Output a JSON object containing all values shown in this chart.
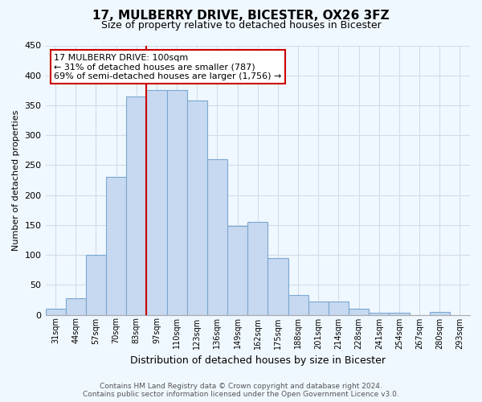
{
  "title": "17, MULBERRY DRIVE, BICESTER, OX26 3FZ",
  "subtitle": "Size of property relative to detached houses in Bicester",
  "xlabel": "Distribution of detached houses by size in Bicester",
  "ylabel": "Number of detached properties",
  "bin_labels": [
    "31sqm",
    "44sqm",
    "57sqm",
    "70sqm",
    "83sqm",
    "97sqm",
    "110sqm",
    "123sqm",
    "136sqm",
    "149sqm",
    "162sqm",
    "175sqm",
    "188sqm",
    "201sqm",
    "214sqm",
    "228sqm",
    "241sqm",
    "254sqm",
    "267sqm",
    "280sqm",
    "293sqm"
  ],
  "bar_heights": [
    10,
    28,
    100,
    230,
    365,
    375,
    375,
    358,
    260,
    148,
    155,
    95,
    33,
    22,
    22,
    10,
    3,
    3,
    0,
    5
  ],
  "bar_color": "#c6d9f0",
  "bar_edge_color": "#7ba7d0",
  "vline_color": "#cc0000",
  "annotation_line1": "17 MULBERRY DRIVE: 100sqm",
  "annotation_line2": "← 31% of detached houses are smaller (787)",
  "annotation_line3": "69% of semi-detached houses are larger (1,756) →",
  "ylim": [
    0,
    450
  ],
  "yticks": [
    0,
    50,
    100,
    150,
    200,
    250,
    300,
    350,
    400,
    450
  ],
  "footer_line1": "Contains HM Land Registry data © Crown copyright and database right 2024.",
  "footer_line2": "Contains public sector information licensed under the Open Government Licence v3.0.",
  "bg_color": "#f0f8ff",
  "grid_color": "#d0dce8"
}
